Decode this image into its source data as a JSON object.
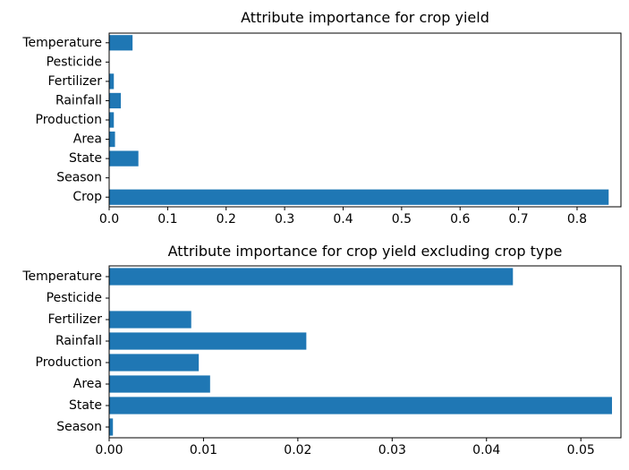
{
  "chart_data": [
    {
      "type": "bar",
      "orientation": "horizontal",
      "title": "Attribute importance for crop yield",
      "xlabel": "",
      "ylabel": "",
      "categories": [
        "Crop",
        "Season",
        "State",
        "Area",
        "Production",
        "Rainfall",
        "Fertilizer",
        "Pesticide",
        "Temperature"
      ],
      "values": [
        0.854,
        0.0,
        0.05,
        0.01,
        0.008,
        0.02,
        0.008,
        0.0,
        0.04
      ],
      "xlim": [
        0,
        0.875
      ],
      "xticks": [
        0.0,
        0.1,
        0.2,
        0.3,
        0.4,
        0.5,
        0.6,
        0.7,
        0.8
      ],
      "xtick_labels": [
        "0.0",
        "0.1",
        "0.2",
        "0.3",
        "0.4",
        "0.5",
        "0.6",
        "0.7",
        "0.8"
      ],
      "grid": false,
      "color": "#1f77b4"
    },
    {
      "type": "bar",
      "orientation": "horizontal",
      "title": "Attribute importance for crop yield excluding crop type",
      "xlabel": "",
      "ylabel": "",
      "categories": [
        "Season",
        "State",
        "Area",
        "Production",
        "Rainfall",
        "Fertilizer",
        "Pesticide",
        "Temperature"
      ],
      "values": [
        0.0004,
        0.0533,
        0.0107,
        0.0095,
        0.0209,
        0.0087,
        0.0,
        0.0428
      ],
      "xlim": [
        0,
        0.05425
      ],
      "xticks": [
        0.0,
        0.01,
        0.02,
        0.03,
        0.04,
        0.05
      ],
      "xtick_labels": [
        "0.00",
        "0.01",
        "0.02",
        "0.03",
        "0.04",
        "0.05"
      ],
      "grid": false,
      "color": "#1f77b4"
    }
  ]
}
